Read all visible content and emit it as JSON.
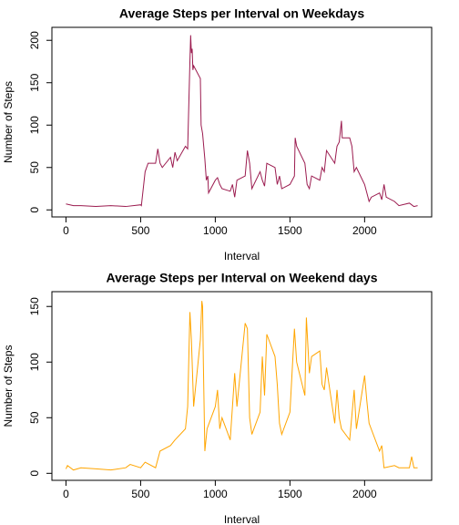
{
  "chart_data": [
    {
      "type": "line",
      "title": "Average Steps per Interval on Weekdays",
      "xlabel": "Interval",
      "ylabel": "Number of Steps",
      "xlim": [
        -94.2,
        2449.2
      ],
      "ylim": [
        -8.3,
        215.3
      ],
      "xticks": [
        0,
        500,
        1000,
        1500,
        2000
      ],
      "yticks": [
        0,
        50,
        100,
        150,
        200
      ],
      "series": [
        {
          "name": "Weekdays",
          "color": "#9b1b4f",
          "x": [
            0,
            50,
            100,
            200,
            300,
            400,
            500,
            505,
            530,
            550,
            600,
            615,
            630,
            645,
            700,
            715,
            730,
            745,
            800,
            815,
            830,
            835,
            840,
            845,
            850,
            855,
            900,
            905,
            915,
            930,
            940,
            950,
            955,
            1000,
            1015,
            1030,
            1045,
            1100,
            1115,
            1130,
            1145,
            1200,
            1215,
            1230,
            1245,
            1300,
            1315,
            1330,
            1345,
            1400,
            1415,
            1430,
            1445,
            1500,
            1515,
            1530,
            1535,
            1545,
            1600,
            1615,
            1630,
            1645,
            1700,
            1715,
            1730,
            1745,
            1800,
            1815,
            1830,
            1845,
            1850,
            1900,
            1915,
            1930,
            1945,
            2000,
            2015,
            2030,
            2045,
            2100,
            2115,
            2130,
            2145,
            2200,
            2230,
            2300,
            2330,
            2355
          ],
          "values": [
            7,
            5,
            5,
            4,
            5,
            4,
            6,
            5,
            45,
            55,
            55,
            72,
            55,
            50,
            62,
            50,
            68,
            58,
            75,
            72,
            175,
            206,
            185,
            190,
            165,
            170,
            155,
            100,
            90,
            60,
            35,
            40,
            20,
            35,
            38,
            30,
            25,
            22,
            30,
            15,
            35,
            40,
            70,
            55,
            25,
            45,
            35,
            28,
            55,
            50,
            30,
            40,
            25,
            30,
            35,
            40,
            85,
            75,
            55,
            30,
            25,
            40,
            35,
            50,
            45,
            70,
            55,
            75,
            80,
            105,
            85,
            85,
            75,
            45,
            50,
            30,
            20,
            10,
            15,
            20,
            12,
            30,
            15,
            10,
            5,
            8,
            4,
            5
          ]
        }
      ]
    },
    {
      "type": "line",
      "title": "Average Steps per Interval on Weekend days",
      "xlabel": "Interval",
      "ylabel": "Number of Steps",
      "xlim": [
        -94.2,
        2449.2
      ],
      "ylim": [
        -6.3,
        163.3
      ],
      "xticks": [
        0,
        500,
        1000,
        1500,
        2000
      ],
      "yticks": [
        0,
        50,
        100,
        150
      ],
      "series": [
        {
          "name": "Weekend days",
          "color": "#ffa500",
          "x": [
            0,
            10,
            50,
            100,
            200,
            300,
            400,
            430,
            500,
            530,
            600,
            630,
            700,
            730,
            800,
            815,
            830,
            840,
            845,
            850,
            855,
            900,
            910,
            915,
            920,
            930,
            945,
            1000,
            1015,
            1030,
            1045,
            1100,
            1130,
            1145,
            1200,
            1215,
            1230,
            1245,
            1300,
            1315,
            1330,
            1345,
            1400,
            1415,
            1430,
            1445,
            1500,
            1530,
            1545,
            1600,
            1610,
            1620,
            1630,
            1645,
            1700,
            1715,
            1730,
            1745,
            1800,
            1815,
            1830,
            1845,
            1900,
            1930,
            1945,
            2000,
            2015,
            2030,
            2100,
            2115,
            2130,
            2200,
            2230,
            2300,
            2315,
            2330,
            2355
          ],
          "values": [
            4,
            7,
            3,
            5,
            4,
            3,
            5,
            8,
            5,
            10,
            5,
            20,
            25,
            30,
            40,
            60,
            145,
            120,
            100,
            80,
            60,
            120,
            155,
            150,
            100,
            20,
            40,
            60,
            75,
            40,
            50,
            30,
            90,
            60,
            135,
            130,
            50,
            35,
            55,
            105,
            70,
            125,
            105,
            80,
            45,
            35,
            55,
            130,
            100,
            70,
            140,
            115,
            90,
            105,
            110,
            80,
            75,
            95,
            45,
            75,
            50,
            40,
            30,
            75,
            40,
            88,
            65,
            45,
            20,
            25,
            5,
            7,
            5,
            5,
            15,
            5,
            5
          ]
        }
      ]
    }
  ]
}
